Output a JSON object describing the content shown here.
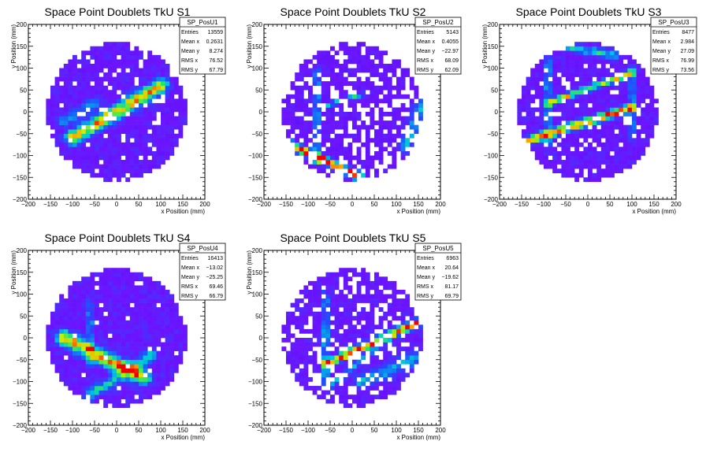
{
  "chart_data": [
    {
      "type": "heatmap",
      "title": "Space Point Doublets TkU S1",
      "xlabel": "x Position (mm)",
      "ylabel": "y Position (mm)",
      "xlim": [
        -200,
        200
      ],
      "ylim": [
        -200,
        200
      ],
      "xticks": [
        -200,
        -150,
        -100,
        -50,
        0,
        50,
        100,
        150,
        200
      ],
      "yticks": [
        -200,
        -150,
        -100,
        -50,
        0,
        50,
        100,
        150,
        200
      ],
      "stats": {
        "name": "SP_PosU1",
        "rows": [
          {
            "label": "Entries",
            "value": "13559"
          },
          {
            "label": "Mean x",
            "value": "0.2631"
          },
          {
            "label": "Mean y",
            "value": "8.274"
          },
          {
            "label": "RMS x",
            "value": "76.52"
          },
          {
            "label": "RMS y",
            "value": "67.79"
          }
        ]
      },
      "bands": [
        {
          "x1": -100,
          "y1": -60,
          "x2": 100,
          "y2": 60,
          "width": 18,
          "peak": 0.65
        },
        {
          "x1": -120,
          "y1": -20,
          "x2": -50,
          "y2": 20,
          "width": 14,
          "peak": 0.25
        }
      ],
      "base_level": 0.12,
      "empty_fraction": 0.08,
      "seed": 11
    },
    {
      "type": "heatmap",
      "title": "Space Point Doublets TkU S2",
      "xlabel": "x Position (mm)",
      "ylabel": "y Position (mm)",
      "xlim": [
        -200,
        200
      ],
      "ylim": [
        -200,
        200
      ],
      "xticks": [
        -200,
        -150,
        -100,
        -50,
        0,
        50,
        100,
        150,
        200
      ],
      "yticks": [
        -200,
        -150,
        -100,
        -50,
        0,
        50,
        100,
        150,
        200
      ],
      "stats": {
        "name": "SP_PosU2",
        "rows": [
          {
            "label": "Entries",
            "value": "5143"
          },
          {
            "label": "Mean x",
            "value": "0.4055"
          },
          {
            "label": "Mean y",
            "value": "-22.97"
          },
          {
            "label": "RMS x",
            "value": "68.09"
          },
          {
            "label": "RMS y",
            "value": "62.09"
          }
        ]
      },
      "bands": [
        {
          "x1": -140,
          "y1": -75,
          "x2": 20,
          "y2": -150,
          "width": 10,
          "peak": 0.9
        },
        {
          "x1": -80,
          "y1": -120,
          "x2": -80,
          "y2": 100,
          "width": 6,
          "peak": 0.45
        },
        {
          "x1": -70,
          "y1": 10,
          "x2": 20,
          "y2": 40,
          "width": 6,
          "peak": 0.4
        },
        {
          "x1": 120,
          "y1": -80,
          "x2": 160,
          "y2": 20,
          "width": 18,
          "peak": 0.3
        }
      ],
      "base_level": 0.1,
      "empty_fraction": 0.3,
      "seed": 23
    },
    {
      "type": "heatmap",
      "title": "Space Point Doublets TkU S3",
      "xlabel": "x Position (mm)",
      "ylabel": "y Position (mm)",
      "xlim": [
        -200,
        200
      ],
      "ylim": [
        -200,
        200
      ],
      "xticks": [
        -200,
        -150,
        -100,
        -50,
        0,
        50,
        100,
        150,
        200
      ],
      "yticks": [
        -200,
        -150,
        -100,
        -50,
        0,
        50,
        100,
        150,
        200
      ],
      "stats": {
        "name": "SP_PosU3",
        "rows": [
          {
            "label": "Entries",
            "value": "8477"
          },
          {
            "label": "Mean x",
            "value": "2.984"
          },
          {
            "label": "Mean y",
            "value": "27.09"
          },
          {
            "label": "RMS x",
            "value": "76.99"
          },
          {
            "label": "RMS y",
            "value": "73.56"
          }
        ]
      },
      "bands": [
        {
          "x1": -150,
          "y1": -70,
          "x2": 100,
          "y2": 10,
          "width": 10,
          "peak": 0.75
        },
        {
          "x1": -90,
          "y1": 20,
          "x2": 100,
          "y2": 90,
          "width": 8,
          "peak": 0.6
        },
        {
          "x1": -90,
          "y1": -80,
          "x2": -90,
          "y2": 120,
          "width": 6,
          "peak": 0.45
        },
        {
          "x1": 100,
          "y1": -60,
          "x2": 100,
          "y2": 100,
          "width": 6,
          "peak": 0.4
        },
        {
          "x1": -60,
          "y1": 150,
          "x2": 60,
          "y2": 130,
          "width": 10,
          "peak": 0.35
        }
      ],
      "base_level": 0.12,
      "empty_fraction": 0.12,
      "seed": 37
    },
    {
      "type": "heatmap",
      "title": "Space Point Doublets TkU S4",
      "xlabel": "x Position (mm)",
      "ylabel": "y Position (mm)",
      "xlim": [
        -200,
        200
      ],
      "ylim": [
        -200,
        200
      ],
      "xticks": [
        -200,
        -150,
        -100,
        -50,
        0,
        50,
        100,
        150,
        200
      ],
      "yticks": [
        -200,
        -150,
        -100,
        -50,
        0,
        50,
        100,
        150,
        200
      ],
      "stats": {
        "name": "SP_PosU4",
        "rows": [
          {
            "label": "Entries",
            "value": "16413"
          },
          {
            "label": "Mean x",
            "value": "-13.02"
          },
          {
            "label": "Mean y",
            "value": "-25.25"
          },
          {
            "label": "RMS x",
            "value": "69.46"
          },
          {
            "label": "RMS y",
            "value": "66.79"
          }
        ]
      },
      "bands": [
        {
          "x1": -120,
          "y1": 0,
          "x2": 60,
          "y2": -90,
          "width": 18,
          "peak": 0.7
        },
        {
          "x1": -60,
          "y1": -130,
          "x2": 80,
          "y2": -40,
          "width": 14,
          "peak": 0.35
        },
        {
          "x1": -60,
          "y1": -60,
          "x2": -60,
          "y2": 80,
          "width": 8,
          "peak": 0.25
        }
      ],
      "base_level": 0.13,
      "empty_fraction": 0.05,
      "seed": 53
    },
    {
      "type": "heatmap",
      "title": "Space Point Doublets TkU S5",
      "xlabel": "x Position (mm)",
      "ylabel": "y Position (mm)",
      "xlim": [
        -200,
        200
      ],
      "ylim": [
        -200,
        200
      ],
      "xticks": [
        -200,
        -150,
        -100,
        -50,
        0,
        50,
        100,
        150,
        200
      ],
      "yticks": [
        -200,
        -150,
        -100,
        -50,
        0,
        50,
        100,
        150,
        200
      ],
      "stats": {
        "name": "SP_PosU5",
        "rows": [
          {
            "label": "Entries",
            "value": "6963"
          },
          {
            "label": "Mean x",
            "value": "20.64"
          },
          {
            "label": "Mean y",
            "value": "-19.62"
          },
          {
            "label": "RMS x",
            "value": "81.17"
          },
          {
            "label": "RMS y",
            "value": "69.79"
          }
        ]
      },
      "bands": [
        {
          "x1": -60,
          "y1": -60,
          "x2": 160,
          "y2": 40,
          "width": 10,
          "peak": 0.8
        },
        {
          "x1": -60,
          "y1": -110,
          "x2": -60,
          "y2": 100,
          "width": 6,
          "peak": 0.45
        },
        {
          "x1": -50,
          "y1": -110,
          "x2": 60,
          "y2": -20,
          "width": 8,
          "peak": 0.3
        },
        {
          "x1": 20,
          "y1": -100,
          "x2": 160,
          "y2": -40,
          "width": 18,
          "peak": 0.28
        }
      ],
      "base_level": 0.12,
      "empty_fraction": 0.25,
      "seed": 71
    }
  ]
}
